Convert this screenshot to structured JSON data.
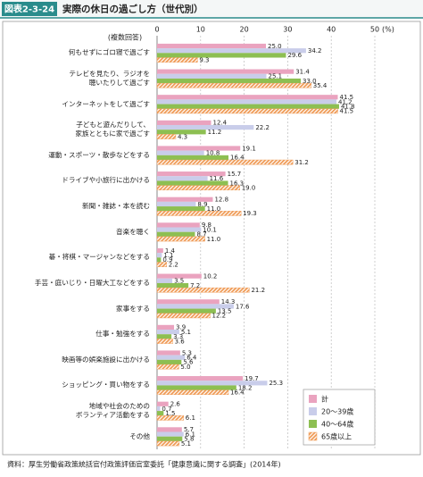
{
  "chart_data": {
    "type": "bar",
    "orientation": "horizontal",
    "figure_label": "図表2-3-24",
    "title": "実際の休日の過ごし方（世代別）",
    "note": "(複数回答)",
    "unit": "(%)",
    "source": "資料：厚生労働省政策統括官付政策評価官室委託「健康意識に関する調査」(2014年)",
    "categories": [
      "何もせずにゴロ寝で過ごす",
      "テレビを見たり、ラジオを\n聴いたりして過ごす",
      "インターネットをして過ごす",
      "子どもと遊んだりして、\n家族とともに家で過ごす",
      "運動・スポーツ・散歩などをする",
      "ドライブや小旅行に出かける",
      "新聞・雑誌・本を読む",
      "音楽を聴く",
      "碁・将棋・マージャンなどをする",
      "手芸・庭いじり・日曜大工などをする",
      "家事をする",
      "仕事・勉強をする",
      "映画等の娯楽施設に出かける",
      "ショッピング・買い物をする",
      "地域や社会のための\nボランティア活動をする",
      "その他"
    ],
    "series": [
      {
        "name": "計",
        "color": "#eaa3bf",
        "hatch": false,
        "values": [
          25.0,
          31.4,
          41.5,
          12.4,
          19.1,
          15.7,
          12.8,
          9.8,
          1.4,
          10.2,
          14.3,
          3.9,
          5.3,
          19.7,
          2.6,
          5.7
        ],
        "value_labels": [
          "25.0",
          "31.4",
          "41.5",
          "12.4",
          "19.1",
          "15.7",
          "12.8",
          "9.8",
          "1.4",
          "10.2",
          "14.3",
          "3.9",
          "5.3",
          "19.7",
          "2.6",
          "5.7"
        ]
      },
      {
        "name": "20～39歳",
        "color": "#c9cdea",
        "hatch": false,
        "values": [
          34.2,
          25.1,
          41.2,
          22.2,
          10.8,
          11.6,
          8.9,
          10.1,
          1.1,
          3.5,
          17.6,
          5.1,
          6.4,
          25.3,
          0.7,
          6.1
        ],
        "value_labels": [
          "34.2",
          "25.1",
          "41.2",
          "22.2",
          "10.8",
          "11.6",
          "8.9",
          "10.1",
          "1.1",
          "3.5",
          "17.6",
          "5.1",
          "6.4",
          "25.3",
          "0.7",
          "6.1"
        ]
      },
      {
        "name": "40～64歳",
        "color": "#8dbf52",
        "hatch": false,
        "values": [
          29.6,
          33.0,
          41.8,
          11.2,
          16.4,
          16.3,
          11.0,
          8.7,
          0.9,
          7.2,
          13.5,
          3.3,
          5.6,
          18.2,
          1.5,
          5.8
        ],
        "value_labels": [
          "29.6",
          "33.0",
          "41.8",
          "11.2",
          "16.4",
          "16.3",
          "11.0",
          "8.7",
          "0.9",
          "7.2",
          "13.5",
          "3.3",
          "5.6",
          "18.2",
          "1.5",
          "5.8"
        ]
      },
      {
        "name": "65歳以上",
        "color": "#ef9a55",
        "hatch": true,
        "values": [
          9.3,
          35.4,
          41.5,
          4.3,
          31.2,
          19.0,
          19.3,
          11.0,
          2.2,
          21.2,
          12.2,
          3.6,
          5.0,
          16.4,
          6.1,
          5.1
        ],
        "value_labels": [
          "9.3",
          "35.4",
          "41.5",
          "4.3",
          "31.2",
          "19.0",
          "19.3",
          "11.0",
          "2.2",
          "21.2",
          "12.2",
          "3.6",
          "5.0",
          "16.4",
          "6.1",
          "5.1"
        ]
      }
    ],
    "xlim": [
      0,
      50
    ],
    "xticks": [
      0,
      10,
      20,
      30,
      40,
      50
    ],
    "grid": true,
    "legend": "lower right"
  }
}
